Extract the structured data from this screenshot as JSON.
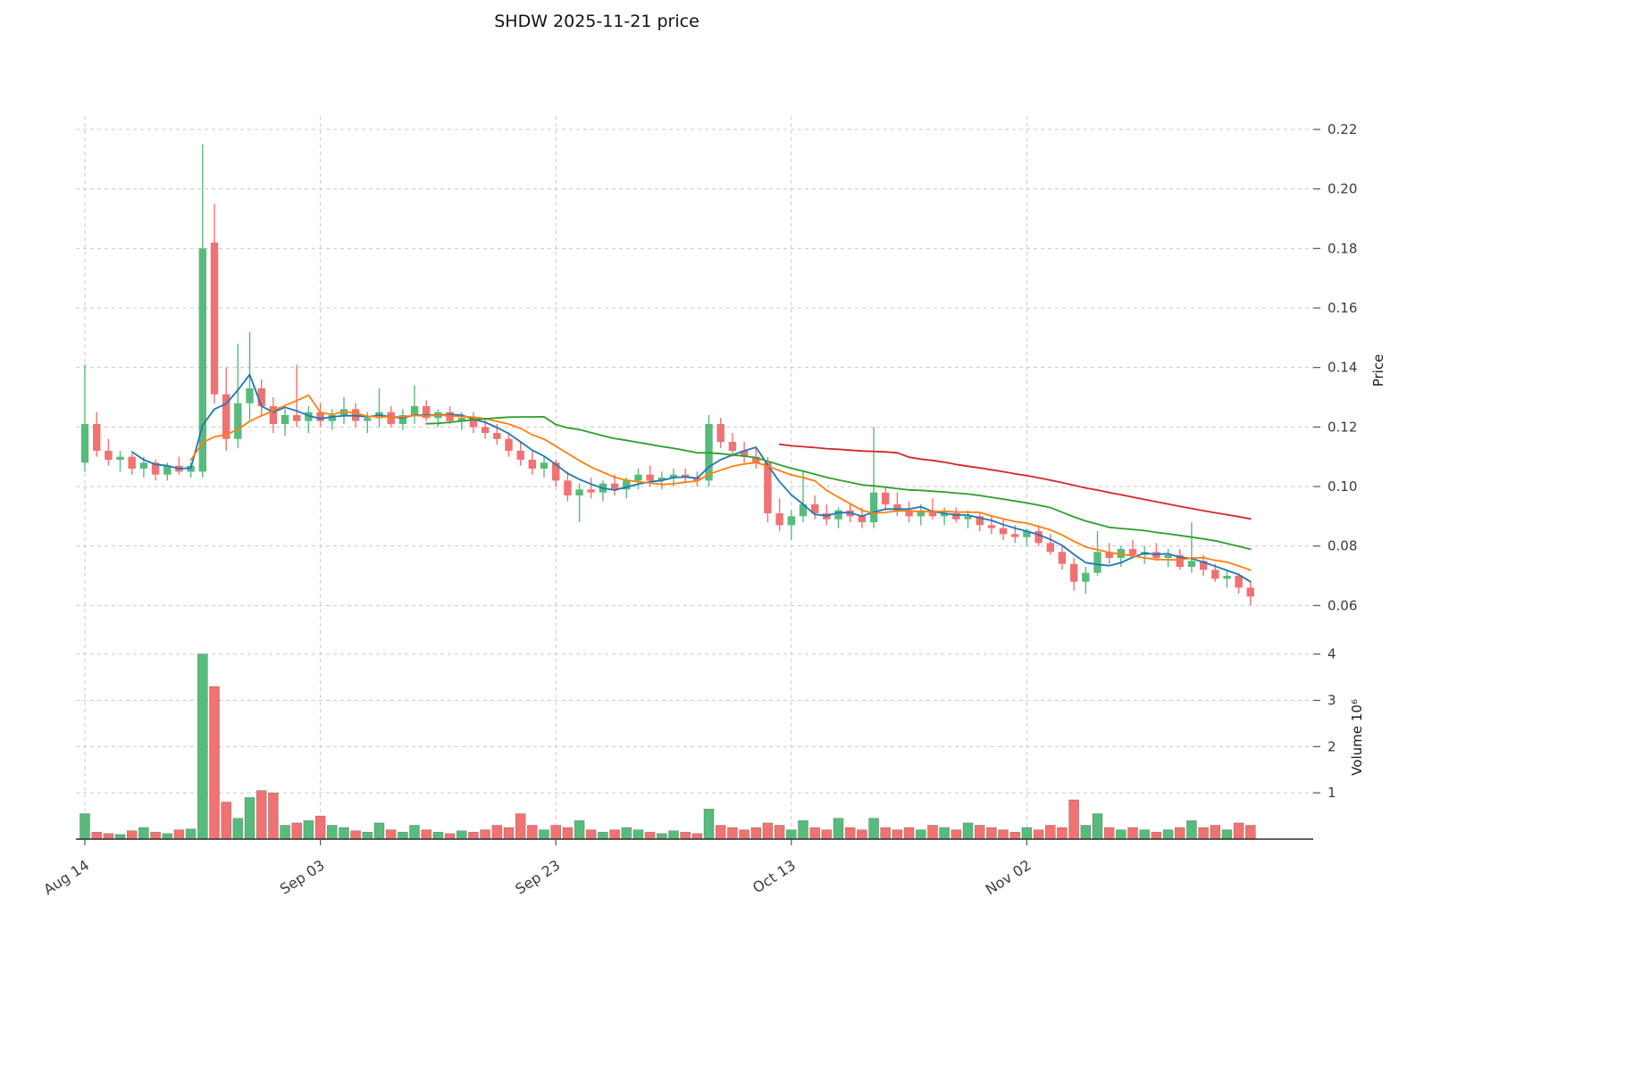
{
  "chart_data": {
    "type": "candlestick",
    "title": "SHDW  2025-11-21  price",
    "ylabel": "Price",
    "ylabel_volume": "Volume  10⁶",
    "ylim_price": [
      0.0535,
      0.2245
    ],
    "yticks_price": [
      0.06,
      0.08,
      0.1,
      0.12,
      0.14,
      0.16,
      0.18,
      0.2,
      0.22
    ],
    "ylim_volume": [
      0,
      4.4
    ],
    "yticks_volume": [
      1,
      2,
      3,
      4
    ],
    "xtick_labels": [
      "Aug 14",
      "Sep 03",
      "Sep 23",
      "Oct 13",
      "Nov 02"
    ],
    "xtick_indices": [
      0,
      20,
      40,
      60,
      80
    ],
    "grid": true,
    "legend": false,
    "colors": {
      "up": "#57bb7c",
      "down": "#f17272",
      "grid": "#c9c9c9",
      "axis_text": "#3b3b3b",
      "spine": "#2b2b2b"
    },
    "moving_averages": [
      {
        "name": "MA5",
        "window": 5,
        "color": "#1f77b4"
      },
      {
        "name": "MA10",
        "window": 10,
        "color": "#ff7f0e"
      },
      {
        "name": "MA30",
        "window": 30,
        "color": "#2ca02c"
      },
      {
        "name": "MA60",
        "window": 60,
        "color": "#d62728"
      }
    ],
    "ohlc": [
      [
        0.108,
        0.141,
        0.105,
        0.121
      ],
      [
        0.121,
        0.125,
        0.11,
        0.112
      ],
      [
        0.112,
        0.116,
        0.107,
        0.109
      ],
      [
        0.109,
        0.112,
        0.105,
        0.11
      ],
      [
        0.11,
        0.111,
        0.104,
        0.106
      ],
      [
        0.106,
        0.11,
        0.103,
        0.108
      ],
      [
        0.108,
        0.109,
        0.102,
        0.104
      ],
      [
        0.104,
        0.108,
        0.102,
        0.107
      ],
      [
        0.107,
        0.11,
        0.104,
        0.105
      ],
      [
        0.105,
        0.108,
        0.103,
        0.107
      ],
      [
        0.105,
        0.215,
        0.103,
        0.18
      ],
      [
        0.182,
        0.195,
        0.128,
        0.131
      ],
      [
        0.131,
        0.14,
        0.112,
        0.116
      ],
      [
        0.116,
        0.148,
        0.113,
        0.128
      ],
      [
        0.128,
        0.152,
        0.122,
        0.133
      ],
      [
        0.133,
        0.136,
        0.124,
        0.127
      ],
      [
        0.127,
        0.13,
        0.118,
        0.121
      ],
      [
        0.121,
        0.126,
        0.117,
        0.124
      ],
      [
        0.124,
        0.141,
        0.12,
        0.122
      ],
      [
        0.122,
        0.127,
        0.118,
        0.125
      ],
      [
        0.125,
        0.128,
        0.12,
        0.122
      ],
      [
        0.122,
        0.126,
        0.119,
        0.124
      ],
      [
        0.124,
        0.13,
        0.121,
        0.126
      ],
      [
        0.126,
        0.128,
        0.12,
        0.122
      ],
      [
        0.122,
        0.125,
        0.118,
        0.123
      ],
      [
        0.123,
        0.133,
        0.12,
        0.125
      ],
      [
        0.125,
        0.127,
        0.12,
        0.121
      ],
      [
        0.121,
        0.126,
        0.119,
        0.124
      ],
      [
        0.124,
        0.134,
        0.121,
        0.127
      ],
      [
        0.127,
        0.129,
        0.122,
        0.123
      ],
      [
        0.123,
        0.126,
        0.12,
        0.125
      ],
      [
        0.125,
        0.127,
        0.121,
        0.122
      ],
      [
        0.122,
        0.125,
        0.119,
        0.123
      ],
      [
        0.123,
        0.125,
        0.118,
        0.12
      ],
      [
        0.12,
        0.123,
        0.116,
        0.118
      ],
      [
        0.118,
        0.121,
        0.114,
        0.116
      ],
      [
        0.116,
        0.118,
        0.11,
        0.112
      ],
      [
        0.112,
        0.115,
        0.107,
        0.109
      ],
      [
        0.109,
        0.112,
        0.104,
        0.106
      ],
      [
        0.106,
        0.11,
        0.103,
        0.108
      ],
      [
        0.108,
        0.109,
        0.1,
        0.102
      ],
      [
        0.102,
        0.105,
        0.095,
        0.097
      ],
      [
        0.097,
        0.101,
        0.088,
        0.099
      ],
      [
        0.099,
        0.103,
        0.096,
        0.098
      ],
      [
        0.098,
        0.102,
        0.095,
        0.101
      ],
      [
        0.101,
        0.104,
        0.097,
        0.099
      ],
      [
        0.099,
        0.103,
        0.096,
        0.102
      ],
      [
        0.102,
        0.106,
        0.099,
        0.104
      ],
      [
        0.104,
        0.107,
        0.1,
        0.102
      ],
      [
        0.102,
        0.105,
        0.099,
        0.103
      ],
      [
        0.103,
        0.106,
        0.1,
        0.104
      ],
      [
        0.104,
        0.106,
        0.101,
        0.103
      ],
      [
        0.103,
        0.105,
        0.1,
        0.102
      ],
      [
        0.102,
        0.124,
        0.1,
        0.121
      ],
      [
        0.121,
        0.123,
        0.113,
        0.115
      ],
      [
        0.115,
        0.118,
        0.11,
        0.112
      ],
      [
        0.112,
        0.115,
        0.108,
        0.11
      ],
      [
        0.11,
        0.113,
        0.106,
        0.108
      ],
      [
        0.108,
        0.11,
        0.088,
        0.091
      ],
      [
        0.091,
        0.096,
        0.085,
        0.087
      ],
      [
        0.087,
        0.092,
        0.082,
        0.09
      ],
      [
        0.09,
        0.105,
        0.088,
        0.094
      ],
      [
        0.094,
        0.097,
        0.089,
        0.091
      ],
      [
        0.091,
        0.094,
        0.087,
        0.089
      ],
      [
        0.089,
        0.093,
        0.086,
        0.092
      ],
      [
        0.092,
        0.094,
        0.088,
        0.09
      ],
      [
        0.09,
        0.093,
        0.086,
        0.088
      ],
      [
        0.088,
        0.12,
        0.086,
        0.098
      ],
      [
        0.098,
        0.1,
        0.092,
        0.094
      ],
      [
        0.094,
        0.098,
        0.09,
        0.092
      ],
      [
        0.092,
        0.095,
        0.088,
        0.09
      ],
      [
        0.09,
        0.094,
        0.087,
        0.092
      ],
      [
        0.092,
        0.096,
        0.089,
        0.09
      ],
      [
        0.09,
        0.093,
        0.087,
        0.091
      ],
      [
        0.091,
        0.093,
        0.088,
        0.089
      ],
      [
        0.089,
        0.092,
        0.086,
        0.09
      ],
      [
        0.09,
        0.091,
        0.085,
        0.087
      ],
      [
        0.087,
        0.09,
        0.084,
        0.086
      ],
      [
        0.086,
        0.089,
        0.082,
        0.084
      ],
      [
        0.084,
        0.087,
        0.081,
        0.083
      ],
      [
        0.083,
        0.086,
        0.08,
        0.085
      ],
      [
        0.085,
        0.087,
        0.08,
        0.081
      ],
      [
        0.081,
        0.084,
        0.077,
        0.078
      ],
      [
        0.078,
        0.08,
        0.072,
        0.074
      ],
      [
        0.074,
        0.076,
        0.065,
        0.068
      ],
      [
        0.068,
        0.073,
        0.064,
        0.071
      ],
      [
        0.071,
        0.085,
        0.07,
        0.078
      ],
      [
        0.078,
        0.081,
        0.074,
        0.076
      ],
      [
        0.076,
        0.08,
        0.073,
        0.079
      ],
      [
        0.079,
        0.082,
        0.076,
        0.077
      ],
      [
        0.077,
        0.08,
        0.074,
        0.078
      ],
      [
        0.078,
        0.081,
        0.075,
        0.076
      ],
      [
        0.076,
        0.079,
        0.073,
        0.077
      ],
      [
        0.077,
        0.079,
        0.072,
        0.073
      ],
      [
        0.073,
        0.088,
        0.071,
        0.075
      ],
      [
        0.075,
        0.077,
        0.07,
        0.072
      ],
      [
        0.072,
        0.074,
        0.068,
        0.069
      ],
      [
        0.069,
        0.072,
        0.066,
        0.07
      ],
      [
        0.07,
        0.071,
        0.064,
        0.066
      ],
      [
        0.066,
        0.068,
        0.06,
        0.063
      ]
    ],
    "volume": [
      0.55,
      0.15,
      0.12,
      0.1,
      0.18,
      0.25,
      0.15,
      0.12,
      0.2,
      0.22,
      4.0,
      3.3,
      0.8,
      0.45,
      0.9,
      1.05,
      1.0,
      0.3,
      0.35,
      0.4,
      0.5,
      0.3,
      0.25,
      0.18,
      0.15,
      0.35,
      0.2,
      0.15,
      0.3,
      0.2,
      0.15,
      0.12,
      0.18,
      0.15,
      0.2,
      0.3,
      0.25,
      0.55,
      0.3,
      0.2,
      0.3,
      0.25,
      0.4,
      0.2,
      0.15,
      0.2,
      0.25,
      0.2,
      0.15,
      0.12,
      0.18,
      0.15,
      0.12,
      0.65,
      0.3,
      0.25,
      0.2,
      0.25,
      0.35,
      0.3,
      0.2,
      0.4,
      0.25,
      0.2,
      0.45,
      0.25,
      0.2,
      0.45,
      0.25,
      0.2,
      0.25,
      0.2,
      0.3,
      0.25,
      0.2,
      0.35,
      0.3,
      0.25,
      0.2,
      0.15,
      0.25,
      0.2,
      0.3,
      0.25,
      0.85,
      0.3,
      0.55,
      0.25,
      0.2,
      0.25,
      0.2,
      0.15,
      0.2,
      0.25,
      0.4,
      0.25,
      0.3,
      0.2,
      0.35,
      0.3
    ]
  }
}
